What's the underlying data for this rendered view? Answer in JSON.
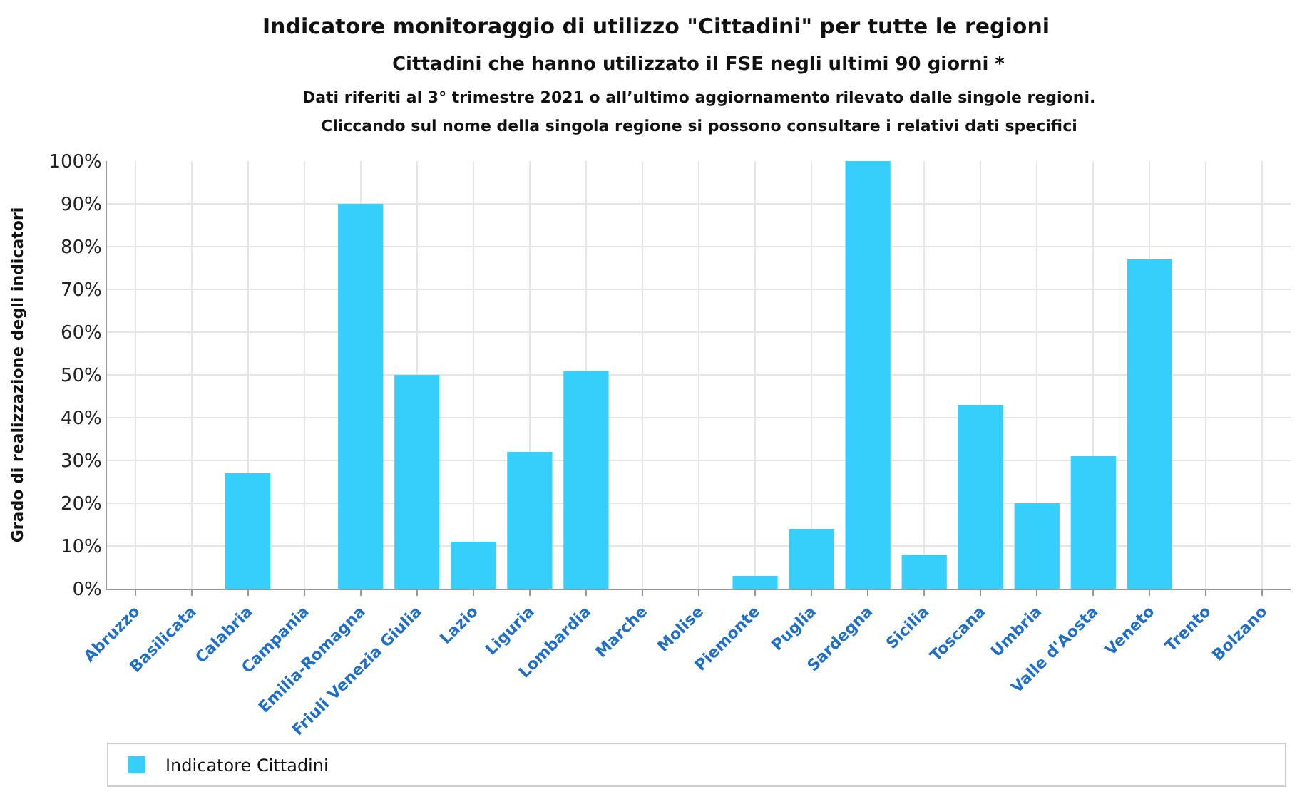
{
  "chart_data": {
    "type": "bar",
    "title": "Indicatore monitoraggio di utilizzo \"Cittadini\" per tutte le regioni",
    "subtitle": "Cittadini che hanno utilizzato il FSE negli ultimi 90 giorni *",
    "annotations": [
      "Dati riferiti al 3° trimestre 2021 o all’ultimo aggiornamento rilevato dalle singole regioni.",
      "Cliccando sul nome della singola regione si possono consultare i relativi dati specifici"
    ],
    "ylabel": "Grado di realizzazione degli indicatori",
    "categories": [
      "Abruzzo",
      "Basilicata",
      "Calabria",
      "Campania",
      "Emilia-Romagna",
      "Friuli Venezia Giulia",
      "Lazio",
      "Liguria",
      "Lombardia",
      "Marche",
      "Molise",
      "Piemonte",
      "Puglia",
      "Sardegna",
      "Sicilia",
      "Toscana",
      "Umbria",
      "Valle d'Aosta",
      "Veneto",
      "Trento",
      "Bolzano"
    ],
    "series": [
      {
        "name": "Indicatore Cittadini",
        "color": "#36cffb",
        "values": [
          0,
          0,
          27,
          0,
          90,
          50,
          11,
          32,
          51,
          0,
          0,
          3,
          14,
          100,
          8,
          43,
          20,
          31,
          77,
          0,
          0
        ]
      }
    ],
    "ylim": [
      0,
      100
    ],
    "yticks": [
      {
        "value": 0,
        "label": "0%"
      },
      {
        "value": 10,
        "label": "10%"
      },
      {
        "value": 20,
        "label": "20%"
      },
      {
        "value": 30,
        "label": "30%"
      },
      {
        "value": 40,
        "label": "40%"
      },
      {
        "value": 50,
        "label": "50%"
      },
      {
        "value": 60,
        "label": "60%"
      },
      {
        "value": 70,
        "label": "70%"
      },
      {
        "value": 80,
        "label": "80%"
      },
      {
        "value": 90,
        "label": "90%"
      },
      {
        "value": 100,
        "label": "100%"
      }
    ],
    "grid": true,
    "legend": "bottom"
  }
}
